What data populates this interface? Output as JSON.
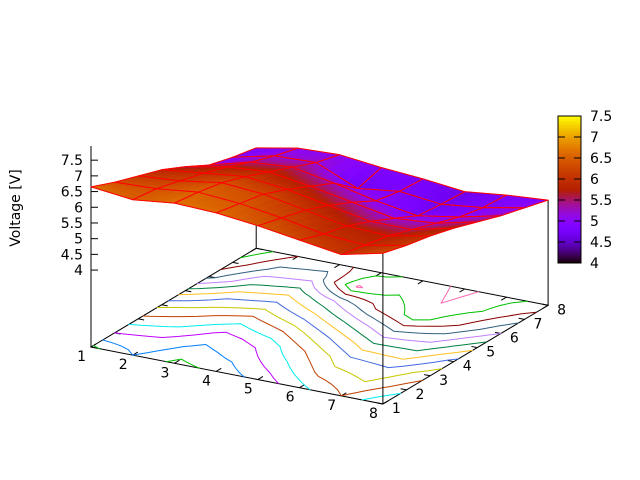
{
  "page": {
    "background": "#ffffff"
  },
  "axes": {
    "zlabel": "Voltage [V]",
    "x_tick_labels": [
      "1",
      "2",
      "3",
      "4",
      "5",
      "6",
      "7",
      "8"
    ],
    "y_tick_labels": [
      "1",
      "2",
      "3",
      "4",
      "5",
      "6",
      "7",
      "8"
    ],
    "z_tick_labels": [
      "4",
      "4.5",
      "5",
      "5.5",
      "6",
      "6.5",
      "7",
      "7.5"
    ]
  },
  "colorbar": {
    "tick_labels": [
      "7.5",
      "7",
      "6.5",
      "6",
      "5.5",
      "5",
      "4.5",
      "4"
    ],
    "min": 4,
    "max": 7.5,
    "palette_name": "pm3d rgbformulae 7,5,15 (black-violet-red-yellow)"
  },
  "chart_data": {
    "type": "surface3d_with_contour_projection",
    "title": "",
    "zlabel": "Voltage [V]",
    "x": [
      1,
      2,
      3,
      4,
      5,
      6,
      7,
      8
    ],
    "y": [
      1,
      2,
      3,
      4,
      5,
      6,
      7,
      8
    ],
    "z_rows_y1_to_y8": [
      [
        6.65,
        6.5,
        6.65,
        6.6,
        6.45,
        6.25,
        6.05,
        6.35
      ],
      [
        6.35,
        6.4,
        6.55,
        6.45,
        6.25,
        6.0,
        5.9,
        6.15
      ],
      [
        6.1,
        6.2,
        6.4,
        6.3,
        6.05,
        5.8,
        5.75,
        6.0
      ],
      [
        5.85,
        6.0,
        6.15,
        6.0,
        5.75,
        5.5,
        5.5,
        5.8
      ],
      [
        5.5,
        5.75,
        5.85,
        5.65,
        5.4,
        5.15,
        5.25,
        5.55
      ],
      [
        5.1,
        5.45,
        5.55,
        5.3,
        5.0,
        4.78,
        5.0,
        5.3
      ],
      [
        4.9,
        5.2,
        5.25,
        4.68,
        4.85,
        4.7,
        4.85,
        5.1
      ],
      [
        4.75,
        5.0,
        5.05,
        4.9,
        4.8,
        4.65,
        4.8,
        4.9
      ]
    ],
    "z_ticks": [
      4,
      4.5,
      5,
      5.5,
      6,
      6.5,
      7,
      7.5
    ],
    "cb_range": [
      4,
      7.5
    ],
    "mesh_line_color": "#ff0000",
    "contour_levels": [
      6.62,
      6.5,
      6.35,
      6.2,
      6.05,
      5.9,
      5.75,
      5.6,
      5.45,
      5.3,
      5.15,
      5.0,
      4.85,
      4.7
    ],
    "contour_colors": [
      "#00C000",
      "#0080FF",
      "#C000FF",
      "#00EEEE",
      "#C04000",
      "#C8C800",
      "#4169E1",
      "#FFC020",
      "#008040",
      "#C080FF",
      "#306080",
      "#8B0000",
      "#00C000",
      "#FF69B4"
    ],
    "legend_position": "right-colorbox",
    "grid": "contour-base-plane"
  }
}
